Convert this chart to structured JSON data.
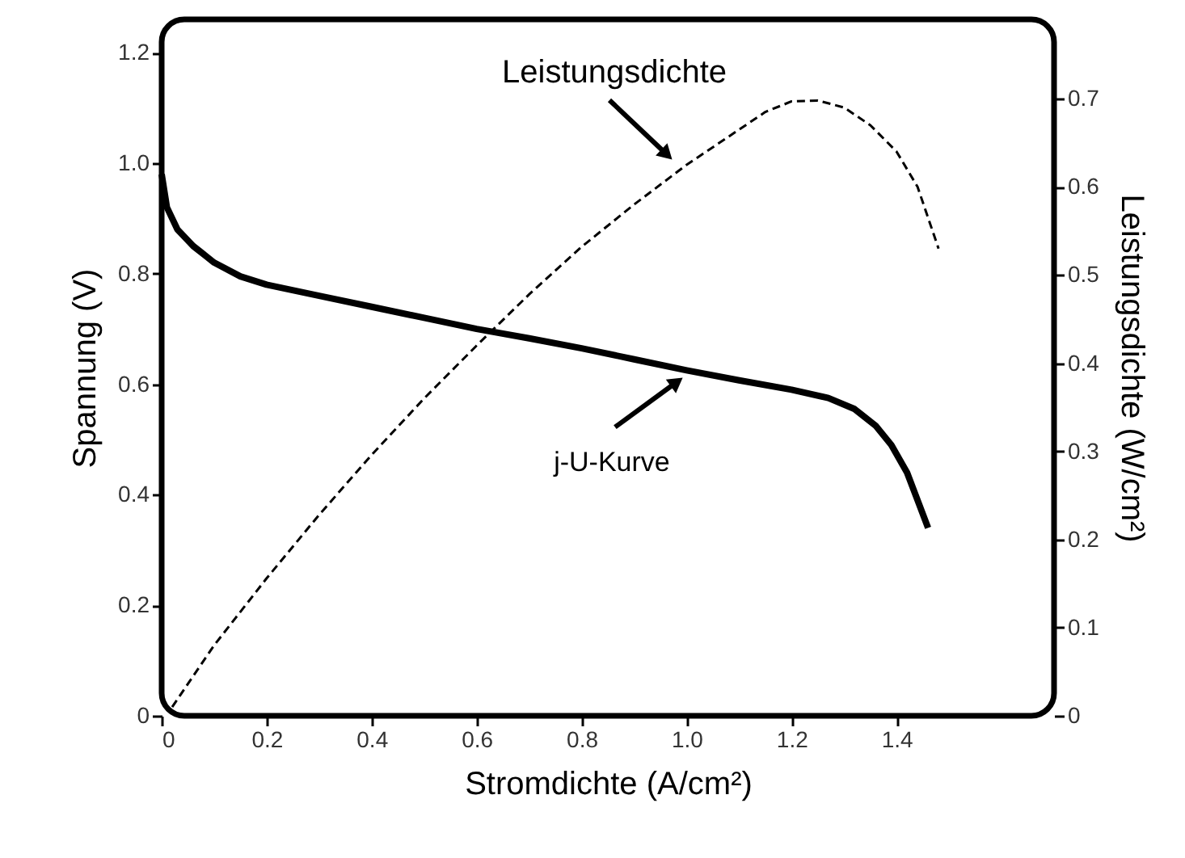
{
  "chart_data": {
    "type": "line",
    "xlabel": "Stromdichte (A/cm²)",
    "ylabel": "Spannung (V)",
    "y2label": "Leistungsdichte (W/cm²)",
    "xlim": [
      0,
      1.7
    ],
    "ylim": [
      0,
      1.26
    ],
    "y2lim": [
      0,
      0.79
    ],
    "xticks": [
      0,
      {
        "value": 0.2,
        "label": "0.2"
      },
      {
        "value": 0.4,
        "label": "0.4"
      },
      {
        "value": 0.6,
        "label": "0.6"
      },
      {
        "value": 0.8,
        "label": "0.8"
      },
      {
        "value": 1.0,
        "label": "1.0"
      },
      {
        "value": 1.2,
        "label": "1.2"
      },
      {
        "value": 1.4,
        "label": "1.4"
      }
    ],
    "yticks": [
      0,
      0.2,
      0.4,
      0.6,
      0.8,
      {
        "value": 1.0,
        "label": "1.0"
      },
      1.2
    ],
    "y2ticks": [
      0,
      0.1,
      0.2,
      0.3,
      0.4,
      0.5,
      0.6,
      0.7
    ],
    "series": [
      {
        "color": "#000000",
        "line_style": "solid",
        "x": [
          0,
          0.01,
          0.03,
          0.06,
          0.1,
          0.15,
          0.2,
          0.3,
          0.4,
          0.5,
          0.6,
          0.7,
          0.8,
          0.9,
          1.0,
          1.1,
          1.2,
          1.27,
          1.32,
          1.36,
          1.39,
          1.42,
          1.44,
          1.46
        ],
        "values": [
          0.98,
          0.92,
          0.88,
          0.85,
          0.82,
          0.795,
          0.78,
          0.76,
          0.74,
          0.72,
          0.7,
          0.683,
          0.665,
          0.645,
          0.625,
          0.607,
          0.59,
          0.575,
          0.555,
          0.525,
          0.49,
          0.44,
          0.39,
          0.34
        ]
      },
      {
        "color": "#000000",
        "line_style": "dashed",
        "axis": "y2",
        "x": [
          0.02,
          0.1,
          0.2,
          0.3,
          0.4,
          0.5,
          0.6,
          0.7,
          0.8,
          0.9,
          1.0,
          1.1,
          1.15,
          1.2,
          1.25,
          1.3,
          1.35,
          1.4,
          1.44,
          1.48
        ],
        "values": [
          0.01,
          0.08,
          0.156,
          0.228,
          0.296,
          0.36,
          0.42,
          0.478,
          0.532,
          0.58,
          0.625,
          0.665,
          0.685,
          0.697,
          0.698,
          0.69,
          0.67,
          0.64,
          0.6,
          0.53
        ]
      }
    ],
    "annotations": [
      "Leistungsdichte",
      {
        "text": "j-U-Kurve",
        "x": 0.99,
        "y": 0.61
      }
    ],
    "grid": false
  }
}
